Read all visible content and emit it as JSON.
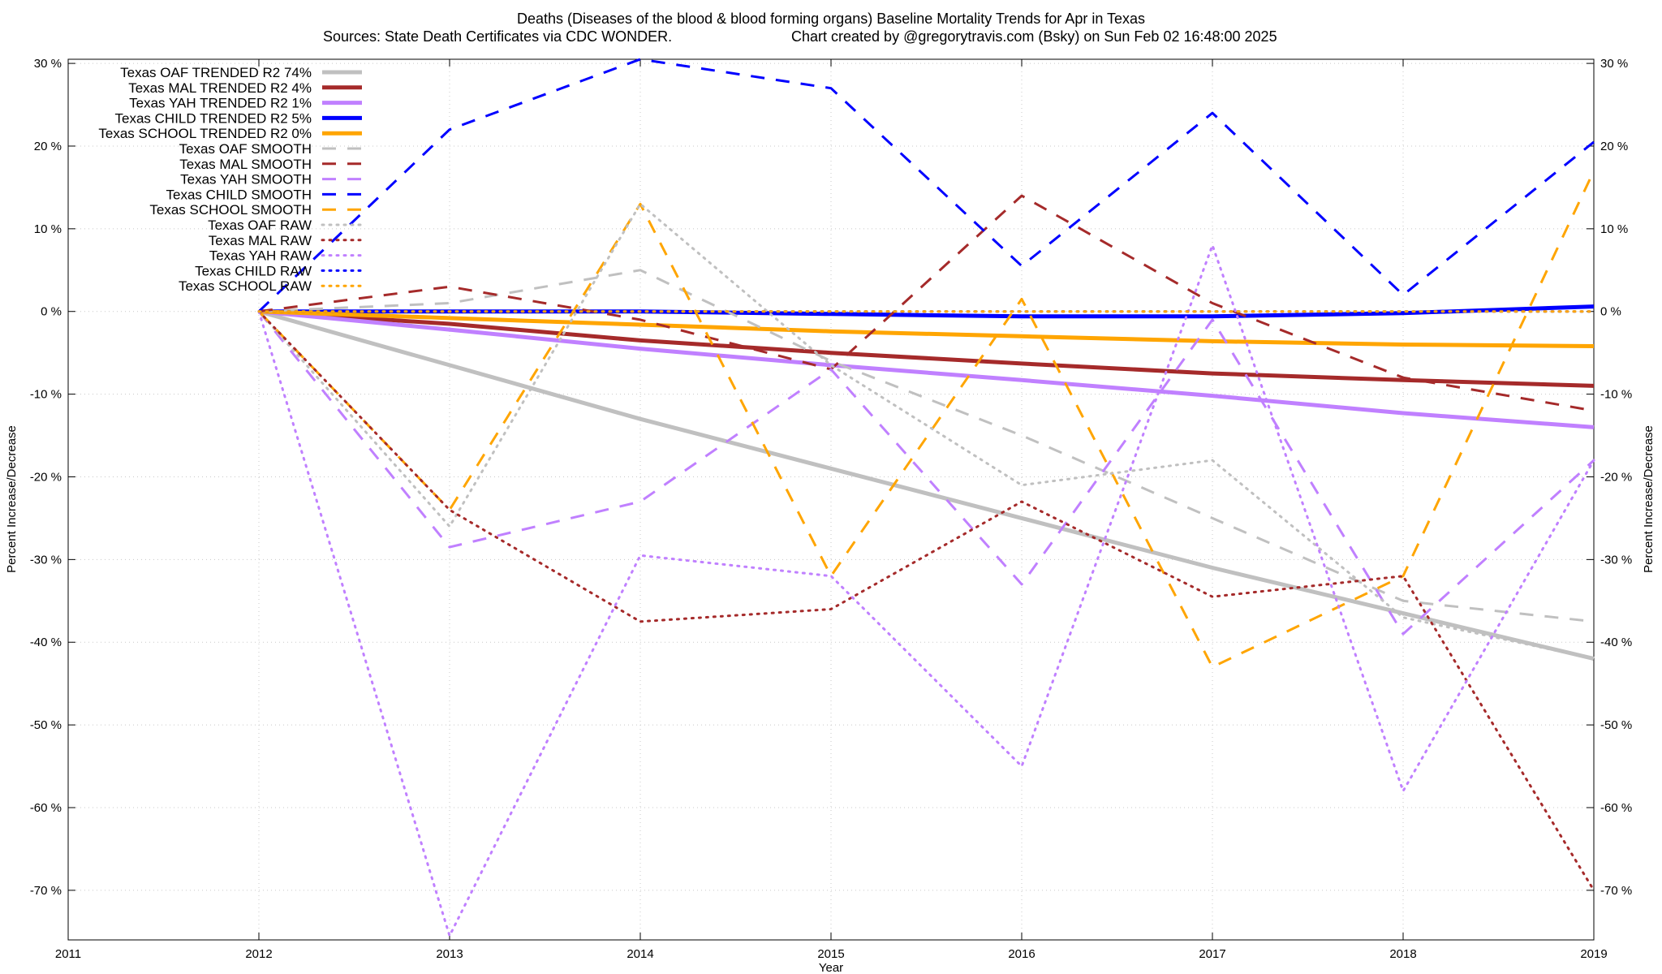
{
  "chart_data": {
    "type": "line",
    "title_line1": "Deaths (Diseases of the blood & blood forming organs)  Baseline Mortality Trends for Apr in Texas",
    "title_line2_left": "Sources: State Death Certificates via CDC WONDER.",
    "title_line2_right": "Chart created by @gregorytravis.com (Bsky) on Sun Feb 02 16:48:00 2025",
    "xlabel": "Year",
    "ylabel_left": "Percent Increase/Decrease",
    "ylabel_right": "Percent Increase/Decrease",
    "xlim": [
      2011,
      2019
    ],
    "ylim": [
      -76,
      30.5
    ],
    "x_ticks": [
      {
        "value": 2011,
        "label": "2011"
      },
      {
        "value": 2012,
        "label": "2012"
      },
      {
        "value": 2013,
        "label": "2013"
      },
      {
        "value": 2014,
        "label": "2014"
      },
      {
        "value": 2015,
        "label": "2015"
      },
      {
        "value": 2016,
        "label": "2016"
      },
      {
        "value": 2017,
        "label": "2017"
      },
      {
        "value": 2018,
        "label": "2018"
      },
      {
        "value": 2019,
        "label": "2019"
      }
    ],
    "y_ticks": [
      {
        "value": 30,
        "label": "30 %"
      },
      {
        "value": 20,
        "label": "20 %"
      },
      {
        "value": 10,
        "label": "10 %"
      },
      {
        "value": 0,
        "label": "0 %"
      },
      {
        "value": -10,
        "label": "-10 %"
      },
      {
        "value": -20,
        "label": "-20 %"
      },
      {
        "value": -30,
        "label": "-30 %"
      },
      {
        "value": -40,
        "label": "-40 %"
      },
      {
        "value": -50,
        "label": "-50 %"
      },
      {
        "value": -60,
        "label": "-60 %"
      },
      {
        "value": -70,
        "label": "-70 %"
      }
    ],
    "grid": true,
    "legend_position": "top-left",
    "x": [
      2012,
      2013,
      2014,
      2015,
      2016,
      2017,
      2018,
      2019
    ],
    "series": [
      {
        "name": "Texas OAF TRENDED R2  74%",
        "color": "#c0c0c0",
        "style": "solid",
        "values": [
          0,
          -6.5,
          -13,
          -19,
          -25,
          -31,
          -36.5,
          -42
        ]
      },
      {
        "name": "Texas MAL TRENDED R2   4%",
        "color": "#a52a2a",
        "style": "solid",
        "values": [
          0,
          -1.5,
          -3.5,
          -5,
          -6.3,
          -7.5,
          -8.3,
          -9
        ]
      },
      {
        "name": "Texas YAH TRENDED R2   1%",
        "color": "#c080ff",
        "style": "solid",
        "values": [
          0,
          -2.2,
          -4.5,
          -6.5,
          -8.3,
          -10.2,
          -12.3,
          -14
        ]
      },
      {
        "name": "Texas CHILD TRENDED R2   5%",
        "color": "#0000ff",
        "style": "solid",
        "values": [
          0,
          0,
          0,
          -0.3,
          -0.6,
          -0.6,
          -0.2,
          0.6
        ]
      },
      {
        "name": "Texas SCHOOL TRENDED R2   0%",
        "color": "#ffa500",
        "style": "solid",
        "values": [
          0,
          -0.8,
          -1.6,
          -2.4,
          -3,
          -3.6,
          -4,
          -4.2
        ]
      },
      {
        "name": "Texas OAF SMOOTH",
        "color": "#c0c0c0",
        "style": "dashed",
        "values": [
          0,
          1,
          5,
          -6,
          -15,
          -25,
          -35,
          -37.5
        ]
      },
      {
        "name": "Texas MAL SMOOTH",
        "color": "#a52a2a",
        "style": "dashed",
        "values": [
          0,
          3,
          -1,
          -7,
          14,
          1,
          -8,
          -12
        ]
      },
      {
        "name": "Texas YAH SMOOTH",
        "color": "#c080ff",
        "style": "dashed",
        "values": [
          0,
          -28.5,
          -23,
          -7,
          -33,
          -1,
          -39,
          -18
        ]
      },
      {
        "name": "Texas CHILD SMOOTH",
        "color": "#0000ff",
        "style": "dashed",
        "values": [
          0,
          22,
          30.5,
          27,
          5.5,
          24,
          2,
          20.5
        ]
      },
      {
        "name": "Texas SCHOOL SMOOTH",
        "color": "#ffa500",
        "style": "dashed",
        "values": [
          0,
          -24,
          13,
          -32,
          1.5,
          -43,
          -32,
          17
        ]
      },
      {
        "name": "Texas OAF RAW",
        "color": "#c0c0c0",
        "style": "dotted",
        "values": [
          0,
          -26,
          13,
          -6.5,
          -21,
          -18,
          -37,
          -42
        ]
      },
      {
        "name": "Texas MAL RAW",
        "color": "#a52a2a",
        "style": "dotted",
        "values": [
          0,
          -24,
          -37.5,
          -36,
          -23,
          -34.5,
          -32,
          -70
        ]
      },
      {
        "name": "Texas YAH RAW",
        "color": "#c080ff",
        "style": "dotted",
        "values": [
          0,
          -75.5,
          -29.5,
          -32,
          -55,
          8,
          -58,
          -18
        ]
      },
      {
        "name": "Texas CHILD RAW",
        "color": "#0000ff",
        "style": "dotted",
        "values": [
          0,
          0,
          0,
          0,
          0,
          0,
          0,
          0
        ]
      },
      {
        "name": "Texas SCHOOL RAW",
        "color": "#ffa500",
        "style": "dotted",
        "values": [
          0,
          0,
          0,
          0,
          0,
          0,
          0,
          0
        ]
      }
    ]
  }
}
